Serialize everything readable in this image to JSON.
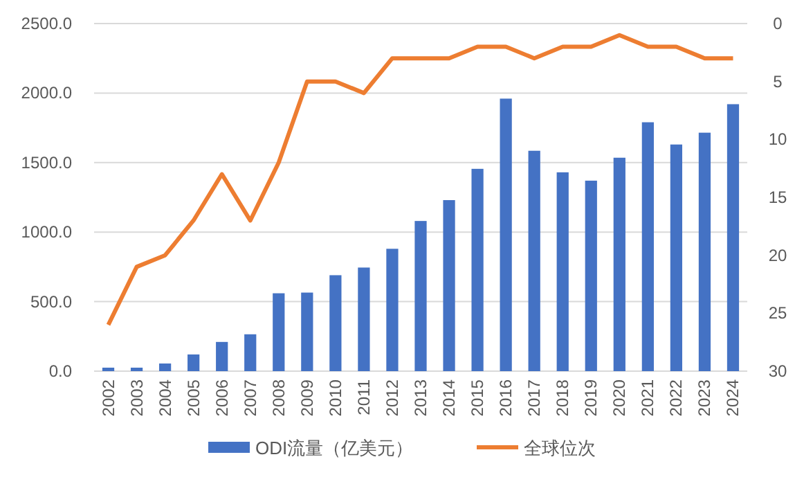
{
  "chart_data": {
    "type": "bar",
    "categories": [
      "2002",
      "2003",
      "2004",
      "2005",
      "2006",
      "2007",
      "2008",
      "2009",
      "2010",
      "2011",
      "2012",
      "2013",
      "2014",
      "2015",
      "2016",
      "2017",
      "2018",
      "2019",
      "2020",
      "2021",
      "2022",
      "2023",
      "2024"
    ],
    "series": [
      {
        "name": "ODI流量（亿美元）",
        "color": "#4472c4",
        "values": [
          25,
          25,
          55,
          120,
          210,
          265,
          560,
          565,
          690,
          745,
          880,
          1080,
          1230,
          1455,
          1960,
          1585,
          1430,
          1370,
          1535,
          1790,
          1630,
          1715,
          1920
        ]
      },
      {
        "name": "全球位次",
        "type": "line",
        "axis": "y2",
        "color": "#ed7d31",
        "values": [
          26,
          21,
          20,
          17,
          13,
          17,
          12,
          5,
          5,
          6,
          3,
          3,
          3,
          2,
          2,
          3,
          2,
          2,
          1,
          2,
          2,
          3,
          3
        ]
      }
    ],
    "ylim": [
      0,
      2500
    ],
    "yticks": [
      {
        "value": 0,
        "label": "0.0"
      },
      {
        "value": 500,
        "label": "500.0"
      },
      {
        "value": 1000,
        "label": "1000.0"
      },
      {
        "value": 1500,
        "label": "1500.0"
      },
      {
        "value": 2000,
        "label": "2000.0"
      },
      {
        "value": 2500,
        "label": "2500.0"
      }
    ],
    "y2lim": [
      30,
      0
    ],
    "y2ticks": [
      0,
      5,
      10,
      15,
      20,
      25,
      30
    ],
    "grid": "y",
    "legend": "bottom",
    "marker": "none",
    "line_style": "solid"
  }
}
